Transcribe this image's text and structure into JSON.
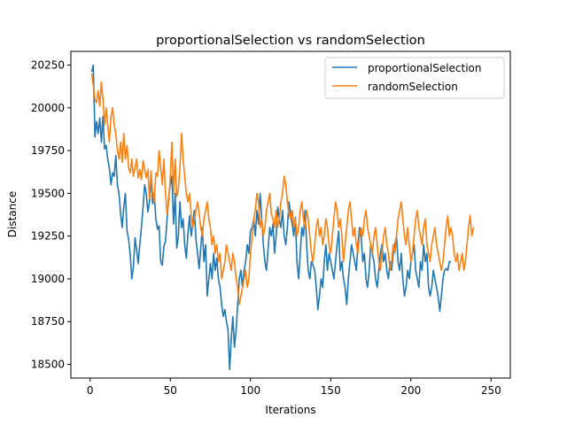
{
  "chart_data": {
    "type": "line",
    "title": "proportionalSelection vs randomSelection",
    "xlabel": "Iterations",
    "ylabel": "Distance",
    "xlim": [
      -12,
      262
    ],
    "ylim": [
      18420,
      20330
    ],
    "xticks": [
      0,
      50,
      100,
      150,
      200,
      250
    ],
    "yticks": [
      18500,
      18750,
      19000,
      19250,
      19500,
      19750,
      20000,
      20250
    ],
    "legend_position": "top-right",
    "grid": false,
    "series": [
      {
        "name": "proportionalSelection",
        "color": "#1f77b4",
        "values": [
          20210,
          20250,
          19830,
          19920,
          19850,
          19940,
          19800,
          19950,
          19760,
          19780,
          19700,
          19650,
          19550,
          19620,
          19600,
          19720,
          19550,
          19500,
          19380,
          19300,
          19420,
          19500,
          19280,
          19230,
          19140,
          19000,
          19070,
          19240,
          19170,
          19090,
          19200,
          19300,
          19420,
          19550,
          19500,
          19390,
          19450,
          19590,
          19440,
          19500,
          19350,
          19290,
          19310,
          19100,
          19080,
          19190,
          19220,
          19350,
          19480,
          19550,
          19600,
          19320,
          19500,
          19180,
          19250,
          19450,
          19300,
          19350,
          19200,
          19120,
          19260,
          19370,
          19250,
          19320,
          19400,
          19230,
          19150,
          19060,
          19180,
          19300,
          19100,
          19200,
          18900,
          19000,
          19090,
          19000,
          19150,
          19050,
          19120,
          19000,
          18950,
          18850,
          18780,
          18820,
          18750,
          18700,
          18470,
          18650,
          18780,
          18600,
          18700,
          18850,
          19000,
          19050,
          18950,
          19050,
          19100,
          19200,
          19150,
          19280,
          19300,
          19350,
          19250,
          19400,
          19320,
          19500,
          19360,
          19200,
          19100,
          19050,
          19180,
          19300,
          19250,
          19320,
          19150,
          19250,
          19420,
          19350,
          19300,
          19400,
          19250,
          19200,
          19300,
          19450,
          19380,
          19320,
          19250,
          19360,
          19100,
          19000,
          19150,
          19300,
          19250,
          19400,
          19200,
          19050,
          19000,
          19100,
          19080,
          19050,
          18950,
          18820,
          18900,
          19000,
          18950,
          19100,
          19200,
          19050,
          19150,
          19100,
          19050,
          19000,
          19100,
          19200,
          19280,
          19050,
          19100,
          19000,
          18950,
          18850,
          19000,
          19100,
          19200,
          19150,
          19100,
          19050,
          19200,
          19300,
          19250,
          19100,
          19150,
          19000,
          18950,
          19050,
          19200,
          19150,
          19100,
          19000,
          18950,
          19050,
          19150,
          19200,
          19100,
          19150,
          19050,
          19000,
          19100,
          19050,
          19150,
          19200,
          19250,
          19100,
          19050,
          19150,
          19000,
          18900,
          18950,
          19050,
          19000,
          19100,
          19150,
          19200,
          19050,
          19000,
          18950,
          19100,
          19050,
          19200,
          19100,
          19150,
          18950,
          18900,
          18950,
          19050,
          19000,
          18950,
          18900,
          18810,
          18900,
          19000,
          19050,
          19060,
          19050,
          19100,
          19100
        ]
      },
      {
        "name": "randomSelection",
        "color": "#ff7f0e",
        "values": [
          20200,
          20130,
          20050,
          20030,
          20100,
          20010,
          20150,
          20050,
          19900,
          20000,
          19900,
          19800,
          19950,
          20000,
          19900,
          19850,
          19750,
          19700,
          19800,
          19680,
          19850,
          19700,
          19780,
          19650,
          19620,
          19700,
          19600,
          19650,
          19700,
          19590,
          19640,
          19580,
          19690,
          19640,
          19590,
          19640,
          19470,
          19630,
          19500,
          19450,
          19620,
          19600,
          19750,
          19650,
          19550,
          19700,
          19500,
          19380,
          19450,
          19600,
          19800,
          19500,
          19700,
          19480,
          19520,
          19650,
          19850,
          19700,
          19600,
          19500,
          19450,
          19500,
          19380,
          19300,
          19350,
          19400,
          19450,
          19380,
          19300,
          19250,
          19350,
          19400,
          19450,
          19350,
          19300,
          19200,
          19250,
          19150,
          19200,
          19100,
          19150,
          19000,
          19050,
          19100,
          19200,
          19150,
          19100,
          19050,
          19150,
          19100,
          19000,
          18950,
          18850,
          18900,
          18950,
          19000,
          19050,
          18950,
          19000,
          19150,
          19250,
          19350,
          19400,
          19500,
          19450,
          19300,
          19350,
          19250,
          19300,
          19400,
          19450,
          19500,
          19380,
          19350,
          19300,
          19400,
          19300,
          19350,
          19450,
          19500,
          19600,
          19550,
          19450,
          19380,
          19350,
          19400,
          19300,
          19350,
          19250,
          19300,
          19400,
          19450,
          19350,
          19300,
          19400,
          19350,
          19250,
          19150,
          19100,
          19200,
          19300,
          19350,
          19250,
          19300,
          19200,
          19250,
          19350,
          19300,
          19200,
          19150,
          19250,
          19350,
          19450,
          19400,
          19300,
          19350,
          19250,
          19100,
          19200,
          19300,
          19400,
          19450,
          19350,
          19250,
          19300,
          19200,
          19150,
          19250,
          19300,
          19250,
          19350,
          19400,
          19300,
          19250,
          19200,
          19150,
          19250,
          19300,
          19200,
          19100,
          19050,
          19150,
          19250,
          19300,
          19200,
          19150,
          19050,
          19100,
          19200,
          19150,
          19250,
          19350,
          19400,
          19450,
          19350,
          19250,
          19200,
          19300,
          19200,
          19100,
          19150,
          19250,
          19350,
          19400,
          19300,
          19250,
          19200,
          19300,
          19350,
          19200,
          19150,
          19100,
          19200,
          19250,
          19300,
          19200,
          19150,
          19100,
          19050,
          19100,
          19200,
          19300,
          19370,
          19250,
          19300,
          19250,
          19150,
          19100,
          19150,
          19050,
          19100,
          19150,
          19050,
          19100,
          19200,
          19300,
          19370,
          19250,
          19300
        ]
      }
    ]
  }
}
